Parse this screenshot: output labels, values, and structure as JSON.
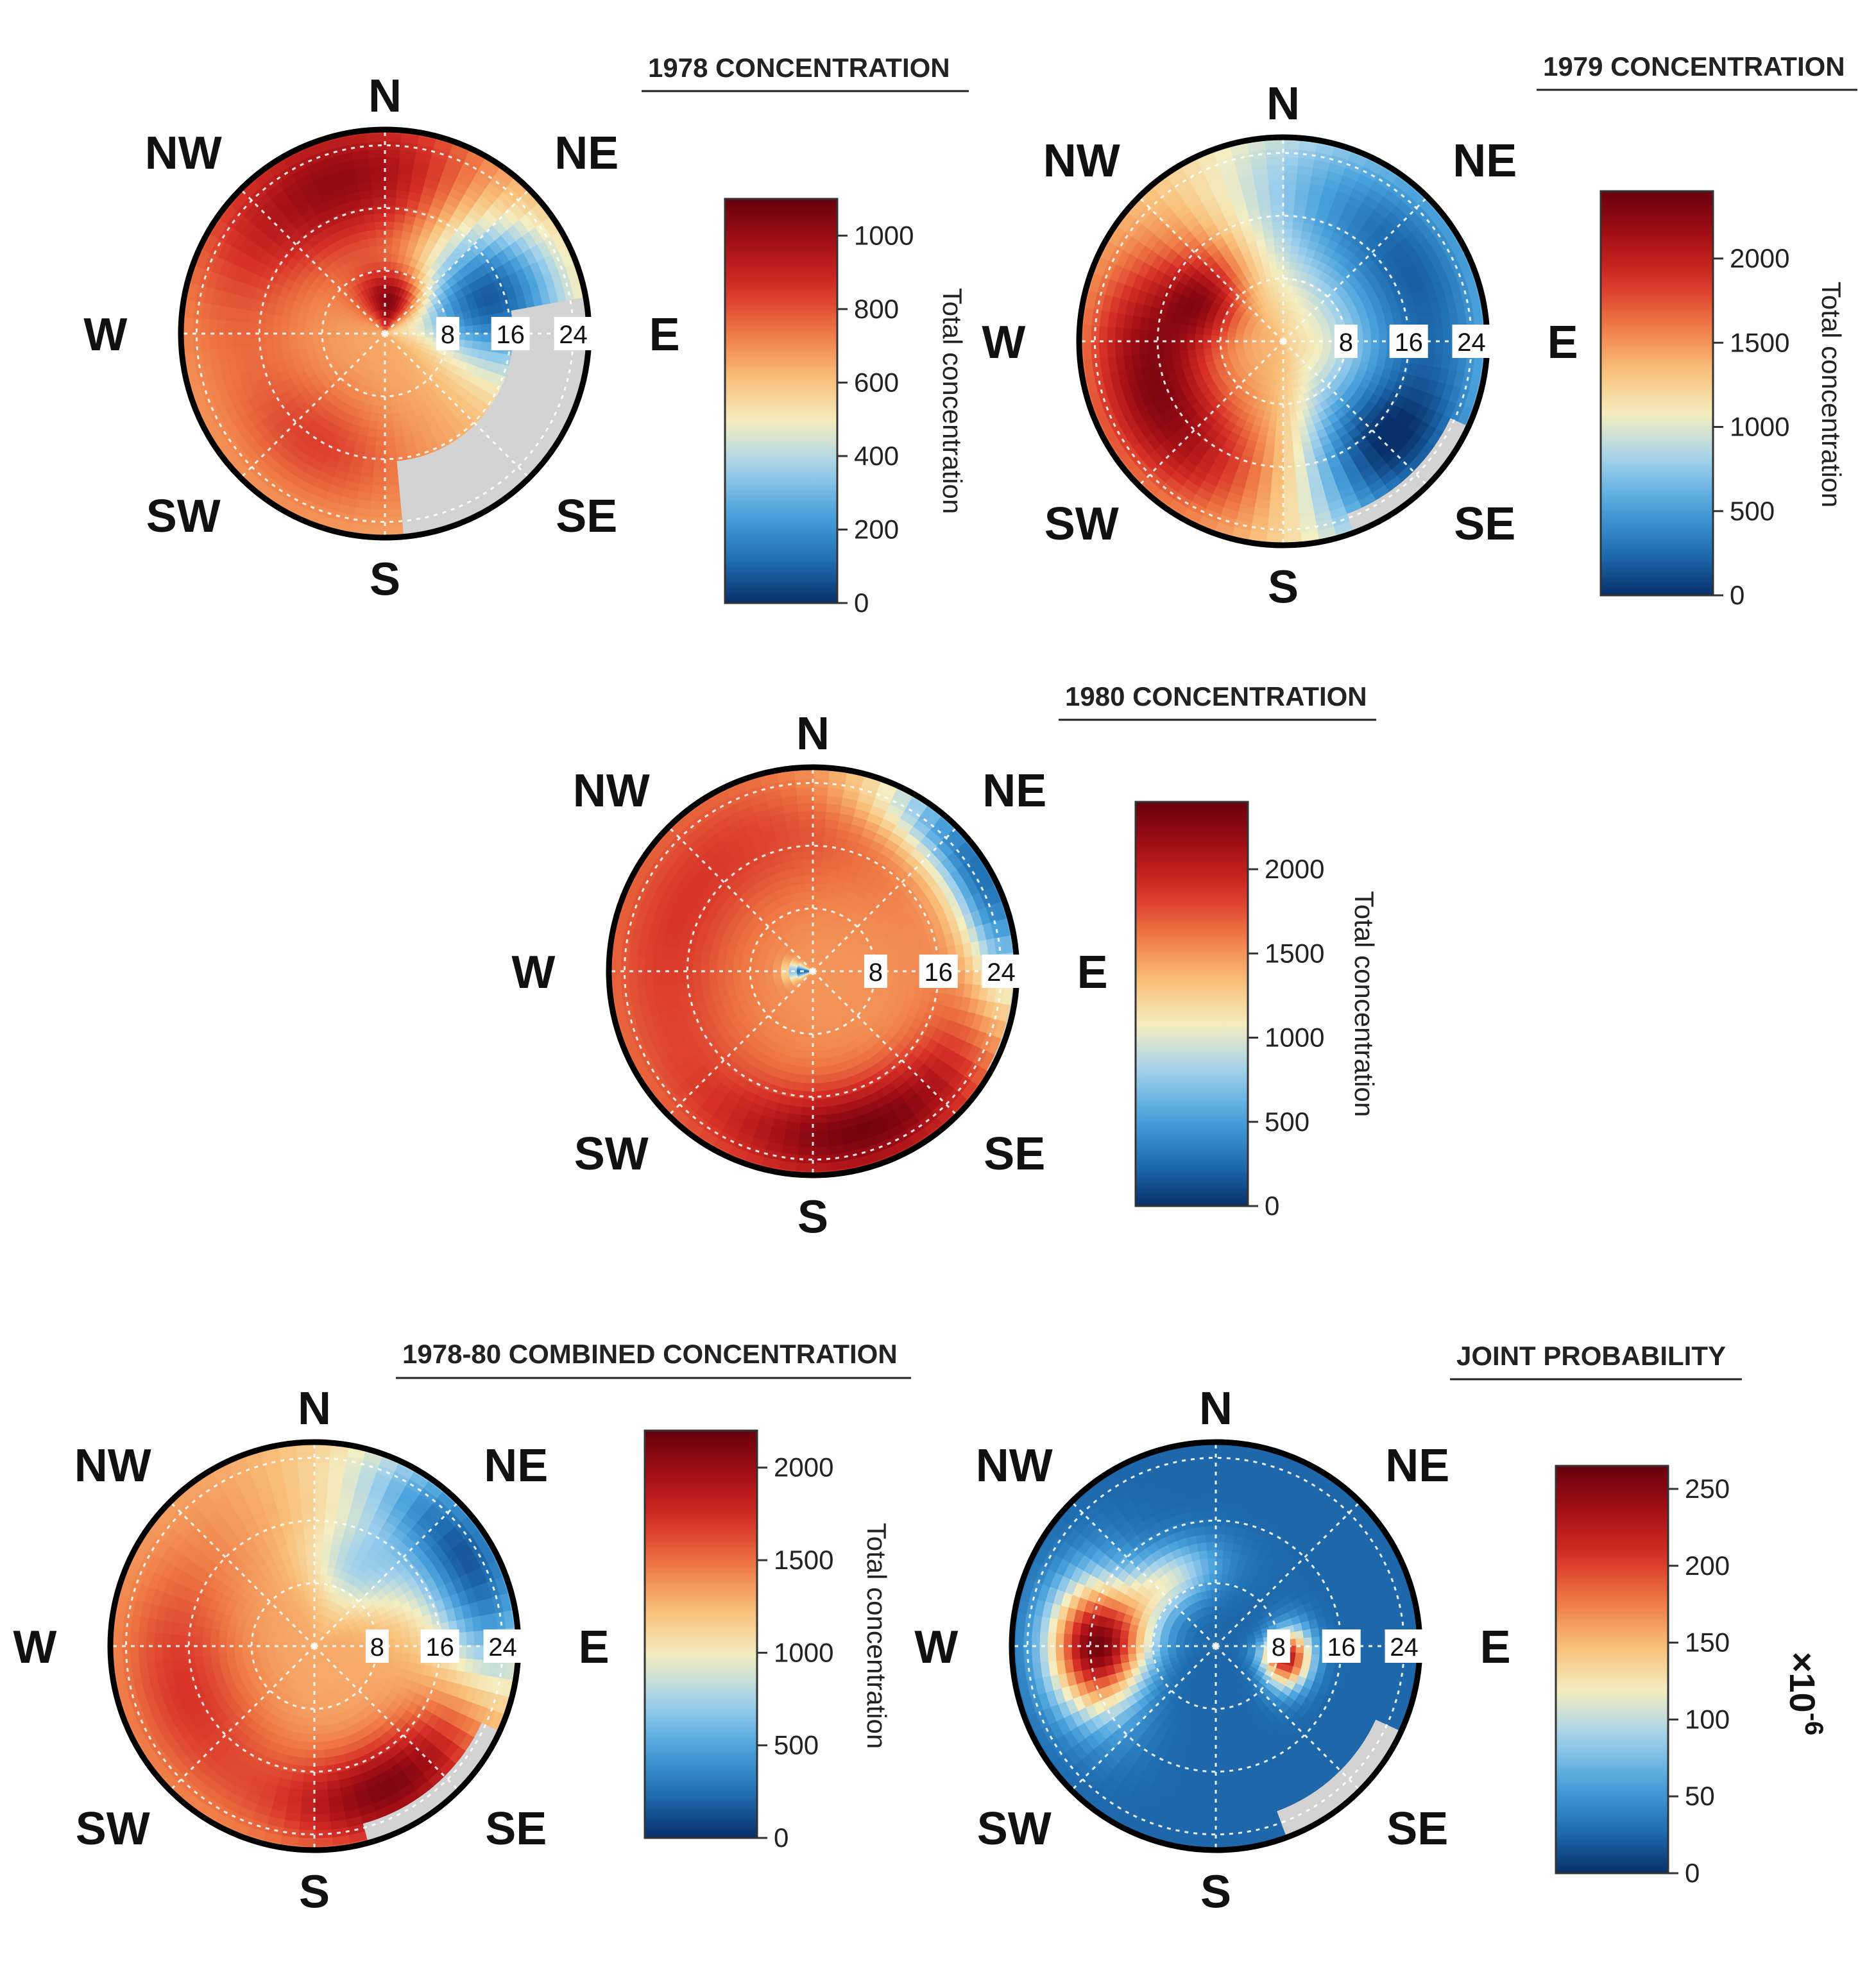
{
  "colors": {
    "scale": [
      "#08306b",
      "#2171b5",
      "#4ba3dc",
      "#9fd0ec",
      "#f4eec2",
      "#f9c07a",
      "#ef7a45",
      "#d73027",
      "#a50f15",
      "#67000d"
    ],
    "missing": "#d3d3d3",
    "border": "#000000",
    "grid": "#ffffff"
  },
  "compass": {
    "n": "N",
    "ne": "NE",
    "e": "E",
    "se": "SE",
    "s": "S",
    "sw": "SW",
    "w": "W",
    "nw": "NW"
  },
  "chart_data": [
    {
      "type": "heatmap",
      "subtype": "polar",
      "title": "1978 CONCENTRATION",
      "radial_axis": {
        "ticks": [
          8,
          16,
          24
        ],
        "max": 26
      },
      "colorbar": {
        "label": "Total concentration",
        "min": 0,
        "max": 1100,
        "ticks": [
          0,
          200,
          400,
          600,
          800,
          1000
        ],
        "multiplier": ""
      },
      "peaks": [
        {
          "direction_deg": 345,
          "radius": 20,
          "value": 1000,
          "spread_deg": 55,
          "spread_r": 9
        },
        {
          "direction_deg": 10,
          "radius": 4,
          "value": 1050,
          "spread_deg": 45,
          "spread_r": 4
        },
        {
          "direction_deg": 270,
          "radius": 16,
          "value": 700,
          "spread_deg": 80,
          "spread_r": 10
        },
        {
          "direction_deg": 210,
          "radius": 16,
          "value": 800,
          "spread_deg": 40,
          "spread_r": 7
        },
        {
          "direction_deg": 70,
          "radius": 14,
          "value": 60,
          "spread_deg": 40,
          "spread_r": 10
        }
      ],
      "base_value": 650,
      "missing_sector_deg": [
        80,
        175
      ],
      "missing_beyond_radius": 16
    },
    {
      "type": "heatmap",
      "subtype": "polar",
      "title": "1979 CONCENTRATION",
      "radial_axis": {
        "ticks": [
          8,
          16,
          24
        ],
        "max": 26
      },
      "colorbar": {
        "label": "Total concentration",
        "min": 0,
        "max": 2400,
        "ticks": [
          0,
          500,
          1000,
          1500,
          2000
        ],
        "multiplier": ""
      },
      "peaks": [
        {
          "direction_deg": 250,
          "radius": 17,
          "value": 2300,
          "spread_deg": 65,
          "spread_r": 8
        },
        {
          "direction_deg": 300,
          "radius": 11,
          "value": 2000,
          "spread_deg": 30,
          "spread_r": 5
        },
        {
          "direction_deg": 60,
          "radius": 18,
          "value": 200,
          "spread_deg": 80,
          "spread_r": 12
        },
        {
          "direction_deg": 140,
          "radius": 18,
          "value": 400,
          "spread_deg": 35,
          "spread_r": 10
        }
      ],
      "base_value": 1350,
      "missing_sector_deg": [
        115,
        160
      ],
      "missing_beyond_radius": 23
    },
    {
      "type": "heatmap",
      "subtype": "polar",
      "title": "1980 CONCENTRATION",
      "radial_axis": {
        "ticks": [
          8,
          16,
          24
        ],
        "max": 26
      },
      "colorbar": {
        "label": "Total concentration",
        "min": 0,
        "max": 2400,
        "ticks": [
          0,
          500,
          1000,
          1500,
          2000
        ],
        "multiplier": ""
      },
      "peaks": [
        {
          "direction_deg": 160,
          "radius": 21,
          "value": 2300,
          "spread_deg": 50,
          "spread_r": 6
        },
        {
          "direction_deg": 300,
          "radius": 18,
          "value": 1850,
          "spread_deg": 100,
          "spread_r": 9
        },
        {
          "direction_deg": 60,
          "radius": 24,
          "value": 200,
          "spread_deg": 40,
          "spread_r": 5
        },
        {
          "direction_deg": 270,
          "radius": 1,
          "value": 150,
          "spread_deg": 25,
          "spread_r": 2
        }
      ],
      "base_value": 1500,
      "missing_sector_deg": [
        95,
        120
      ],
      "missing_beyond_radius": 25
    },
    {
      "type": "heatmap",
      "subtype": "polar",
      "title": "1978-80 COMBINED CONCENTRATION",
      "radial_axis": {
        "ticks": [
          8,
          16,
          24
        ],
        "max": 26
      },
      "colorbar": {
        "label": "Total concentration",
        "min": 0,
        "max": 2200,
        "ticks": [
          0,
          500,
          1000,
          1500,
          2000
        ],
        "multiplier": ""
      },
      "peaks": [
        {
          "direction_deg": 150,
          "radius": 20,
          "value": 2100,
          "spread_deg": 40,
          "spread_r": 6
        },
        {
          "direction_deg": 250,
          "radius": 17,
          "value": 1700,
          "spread_deg": 60,
          "spread_r": 8
        },
        {
          "direction_deg": 60,
          "radius": 22,
          "value": 150,
          "spread_deg": 45,
          "spread_r": 7
        },
        {
          "direction_deg": 30,
          "radius": 11,
          "value": 800,
          "spread_deg": 35,
          "spread_r": 6
        }
      ],
      "base_value": 1300,
      "missing_sector_deg": [
        115,
        165
      ],
      "missing_beyond_radius": 23
    },
    {
      "type": "heatmap",
      "subtype": "polar",
      "title": "JOINT PROBABILITY",
      "radial_axis": {
        "ticks": [
          8,
          16,
          24
        ],
        "max": 26
      },
      "colorbar": {
        "label": "",
        "min": 0,
        "max": 265,
        "ticks": [
          0,
          50,
          100,
          150,
          200,
          250
        ],
        "multiplier": "×10-6"
      },
      "peaks": [
        {
          "direction_deg": 270,
          "radius": 15,
          "value": 255,
          "spread_deg": 30,
          "spread_r": 6
        },
        {
          "direction_deg": 100,
          "radius": 9,
          "value": 225,
          "spread_deg": 22,
          "spread_r": 3
        },
        {
          "direction_deg": 320,
          "radius": 10,
          "value": 110,
          "spread_deg": 40,
          "spread_r": 4
        }
      ],
      "base_value": 25,
      "missing_sector_deg": [
        115,
        160
      ],
      "missing_beyond_radius": 22
    }
  ]
}
